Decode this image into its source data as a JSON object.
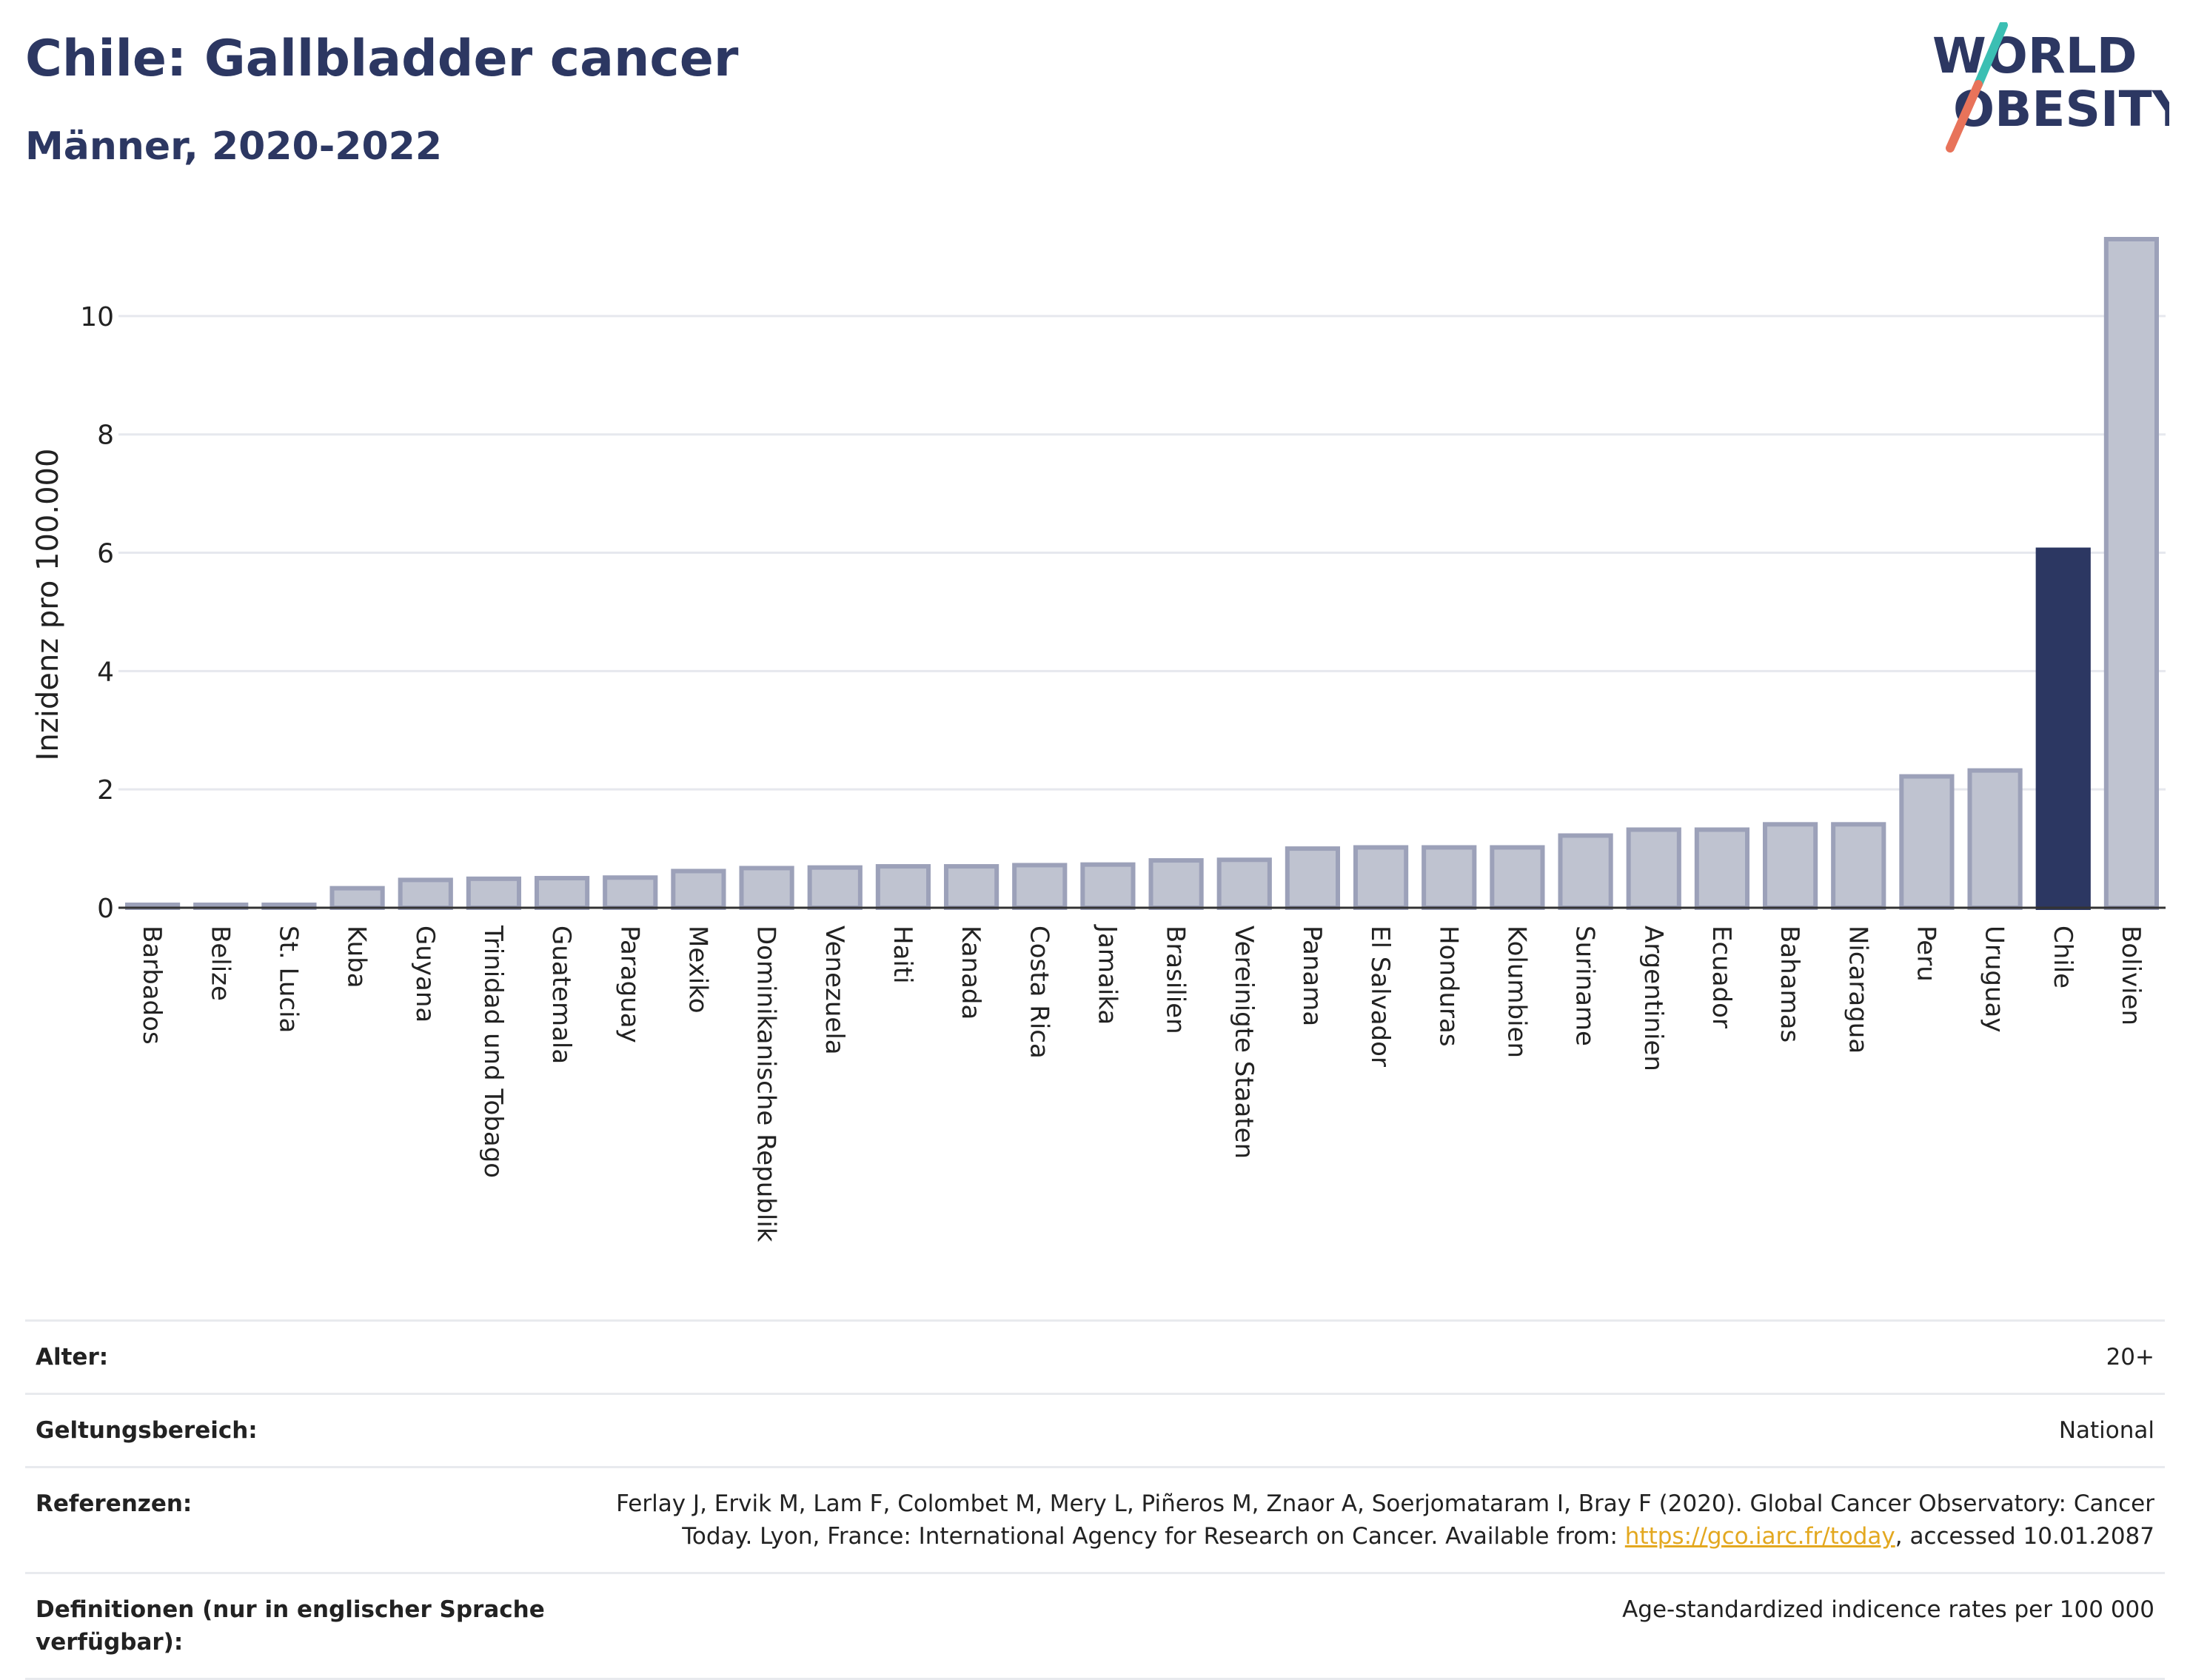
{
  "header": {
    "title": "Chile: Gallbladder cancer",
    "subtitle": "Männer, 2020-2022"
  },
  "logo": {
    "line1": "WORLD",
    "line2": "OBESITY",
    "colors": {
      "text": "#2c3762",
      "slash_top": "#3bbfb3",
      "slash_bottom": "#e8735a"
    }
  },
  "chart_data": {
    "type": "bar",
    "ylabel": "Inzidenz pro 100.000",
    "ylim": [
      0,
      11.5
    ],
    "yticks": [
      0,
      2,
      4,
      6,
      8,
      10
    ],
    "grid": true,
    "highlight": "Chile",
    "colors": {
      "bar": "#bfc3d0",
      "bar_edge": "#9ca1b9",
      "highlight": "#2c3762"
    },
    "categories": [
      "Barbados",
      "Belize",
      "St. Lucia",
      "Kuba",
      "Guyana",
      "Trinidad und Tobago",
      "Guatemala",
      "Paraguay",
      "Mexiko",
      "Dominikanische Republik",
      "Venezuela",
      "Haiti",
      "Kanada",
      "Costa Rica",
      "Jamaika",
      "Brasilien",
      "Vereinigte Staaten",
      "Panama",
      "El Salvador",
      "Honduras",
      "Kolumbien",
      "Suriname",
      "Argentinien",
      "Ecuador",
      "Bahamas",
      "Nicaragua",
      "Peru",
      "Uruguay",
      "Chile",
      "Bolivien"
    ],
    "values": [
      0.05,
      0.05,
      0.05,
      0.33,
      0.47,
      0.49,
      0.5,
      0.51,
      0.62,
      0.67,
      0.68,
      0.7,
      0.7,
      0.72,
      0.73,
      0.8,
      0.81,
      1.0,
      1.02,
      1.02,
      1.02,
      1.22,
      1.32,
      1.32,
      1.41,
      1.41,
      2.22,
      2.32,
      6.05,
      11.3
    ]
  },
  "meta": {
    "rows": [
      {
        "label": "Alter:",
        "value": "20+"
      },
      {
        "label": "Geltungsbereich:",
        "value": "National"
      },
      {
        "label": "Referenzen:",
        "value_pre": "Ferlay J, Ervik M, Lam F, Colombet M, Mery L, Piñeros M, Znaor A, Soerjomataram I, Bray F (2020). Global Cancer Observatory: Cancer Today. Lyon, France: International Agency for Research on Cancer. Available from: ",
        "link": "https://gco.iarc.fr/today",
        "value_post": ", accessed 10.01.2087"
      },
      {
        "label": "Definitionen (nur in englischer Sprache verfügbar):",
        "value": "Age-standardized indicence rates per 100 000"
      }
    ]
  }
}
